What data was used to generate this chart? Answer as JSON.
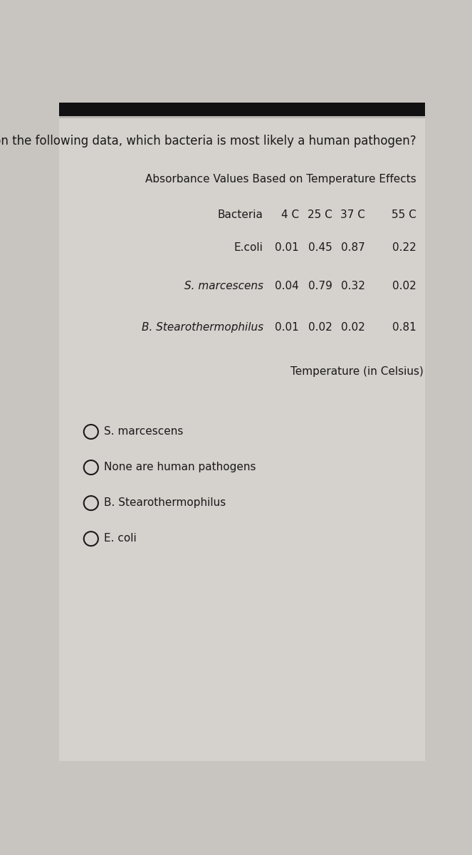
{
  "question": "Based on the following data, which bacteria is most likely a human pathogen?",
  "table_title": "Absorbance Values Based on Temperature Effects",
  "col_header": "Bacteria",
  "bacteria": [
    "E.coli",
    "S. marcescens",
    "B. Stearothermophilus"
  ],
  "bacteria_italic": [
    false,
    true,
    true
  ],
  "temps": [
    "4 C",
    "25 C",
    "37 C",
    "55 C"
  ],
  "values": [
    [
      0.01,
      0.45,
      0.87,
      0.22
    ],
    [
      0.04,
      0.79,
      0.32,
      0.02
    ],
    [
      0.01,
      0.02,
      0.02,
      0.81
    ]
  ],
  "temp_label": "Temperature (in Celsius)",
  "choices": [
    "S. marcescens",
    "None are human pathogens",
    "B. Stearothermophilus",
    "E. coli"
  ],
  "bg_color": "#c8c4c0",
  "paper_color": "#d8d4d0",
  "text_color": "#1a1a1a",
  "top_bar_color": "#111111",
  "font_size": 11,
  "title_font_size": 12,
  "table_font_size": 11
}
